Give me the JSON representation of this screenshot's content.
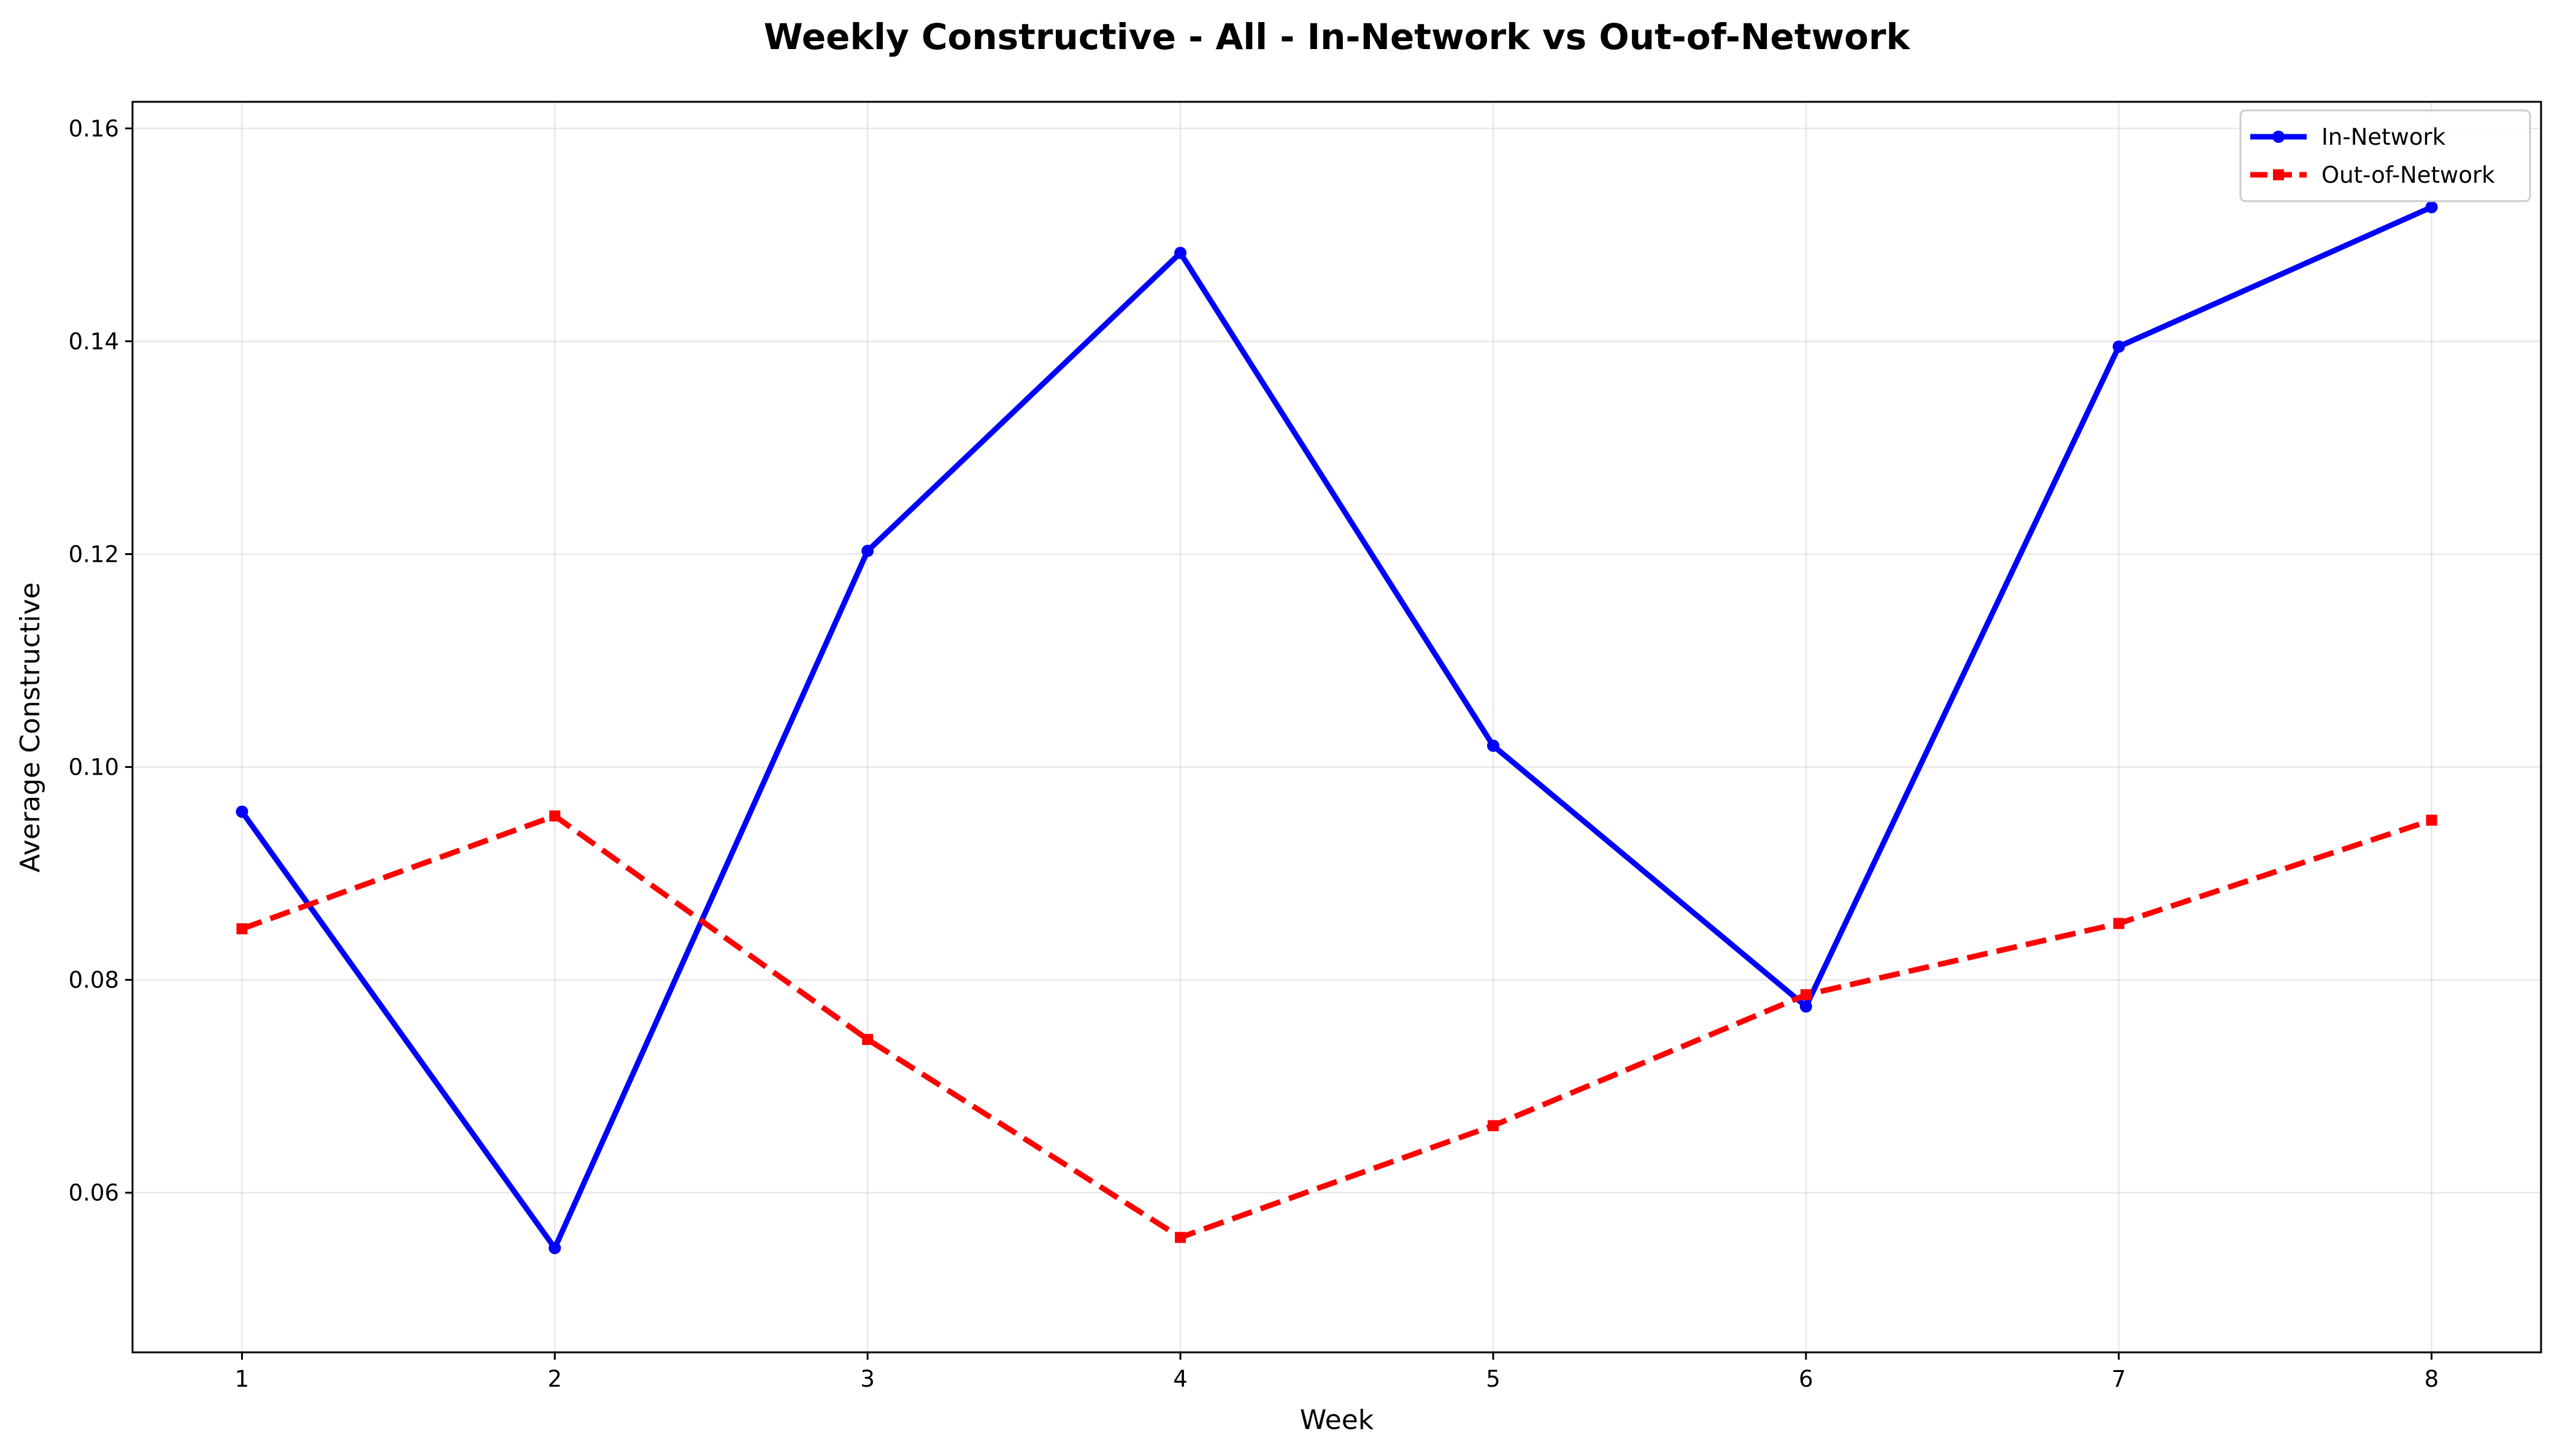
{
  "chart_data": {
    "type": "line",
    "title": "Weekly Constructive - All - In-Network vs Out-of-Network",
    "xlabel": "Week",
    "ylabel": "Average Constructive",
    "x": [
      1,
      2,
      3,
      4,
      5,
      6,
      7,
      8
    ],
    "xlim": [
      0.65,
      8.35
    ],
    "ylim": [
      0.045,
      0.1625
    ],
    "xticks": [
      1,
      2,
      3,
      4,
      5,
      6,
      7,
      8
    ],
    "yticks": [
      0.06,
      0.08,
      0.1,
      0.12,
      0.14,
      0.16
    ],
    "ytick_labels": [
      "0.06",
      "0.08",
      "0.10",
      "0.12",
      "0.14",
      "0.16"
    ],
    "grid": true,
    "legend_position": "top-right",
    "series": [
      {
        "name": "In-Network",
        "values": [
          0.0958,
          0.0548,
          0.1203,
          0.1483,
          0.102,
          0.0775,
          0.1395,
          0.1526
        ],
        "color": "#0000ff",
        "line_style": "solid",
        "marker": "circle"
      },
      {
        "name": "Out-of-Network",
        "values": [
          0.0848,
          0.0954,
          0.0744,
          0.0558,
          0.0663,
          0.0786,
          0.0853,
          0.095
        ],
        "color": "#ff0000",
        "line_style": "dashed",
        "marker": "square"
      }
    ]
  }
}
